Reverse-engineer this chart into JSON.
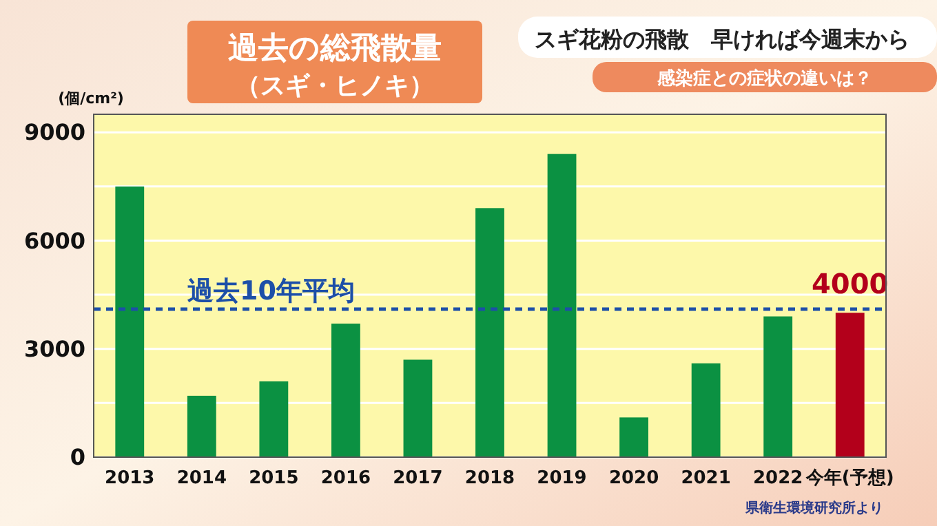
{
  "chart_data": {
    "type": "bar",
    "title": "過去の総飛散量",
    "subtitle": "（スギ・ヒノキ）",
    "ylabel": "(個/cm²)",
    "annotations": [
      "スギ花粉の飛散　早ければ今週末から",
      "感染症との症状の違いは？",
      "県衛生環境研究所より"
    ],
    "categories": [
      "2013",
      "2014",
      "2015",
      "2016",
      "2017",
      "2018",
      "2019",
      "2020",
      "2021",
      "2022",
      "今年(予想)"
    ],
    "values": [
      7500,
      1700,
      2100,
      3700,
      2700,
      6900,
      8400,
      1100,
      2600,
      3900,
      4000
    ],
    "colors": [
      "#0b9142",
      "#0b9142",
      "#0b9142",
      "#0b9142",
      "#0b9142",
      "#0b9142",
      "#0b9142",
      "#0b9142",
      "#0b9142",
      "#0b9142",
      "#b3001b"
    ],
    "value_labels": [
      null,
      null,
      null,
      null,
      null,
      null,
      null,
      null,
      null,
      null,
      "4000"
    ],
    "ylim": [
      0,
      9500
    ],
    "yticks": [
      0,
      {
        "value": 1500,
        "label": null
      },
      3000,
      {
        "value": 4500,
        "label": null
      },
      6000,
      {
        "value": 7500,
        "label": null
      },
      9000
    ],
    "grid": "y",
    "ref_lines": [
      {
        "axis": "y",
        "value": 4100,
        "label": "過去10年平均",
        "color": "#1d4fa8",
        "line_style": "dashed"
      }
    ]
  }
}
